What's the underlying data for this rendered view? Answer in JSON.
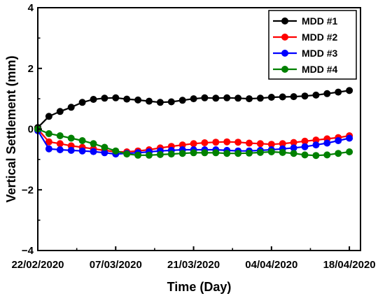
{
  "chart_data": {
    "type": "line",
    "title": "",
    "xlabel": "Time (Day)",
    "ylabel": "Vertical Settlement (mm)",
    "xlim": [
      "2020-02-22",
      "2020-04-20"
    ],
    "ylim": [
      -4,
      4
    ],
    "x_ticks": [
      "22/02/2020",
      "07/03/2020",
      "21/03/2020",
      "04/04/2020",
      "18/04/2020"
    ],
    "y_ticks": [
      "4",
      "2",
      "0",
      "−2",
      "−4"
    ],
    "y_tick_values": [
      4,
      2,
      0,
      -2,
      -4
    ],
    "legend_placement": "top-right",
    "grid": false,
    "x": [
      "2020-02-22",
      "2020-02-24",
      "2020-02-26",
      "2020-02-28",
      "2020-03-01",
      "2020-03-03",
      "2020-03-05",
      "2020-03-07",
      "2020-03-09",
      "2020-03-11",
      "2020-03-13",
      "2020-03-15",
      "2020-03-17",
      "2020-03-19",
      "2020-03-21",
      "2020-03-23",
      "2020-03-25",
      "2020-03-27",
      "2020-03-29",
      "2020-03-31",
      "2020-04-02",
      "2020-04-04",
      "2020-04-06",
      "2020-04-08",
      "2020-04-10",
      "2020-04-12",
      "2020-04-14",
      "2020-04-16",
      "2020-04-18"
    ],
    "series": [
      {
        "name": "MDD #1",
        "color": "#000000",
        "values": [
          0.05,
          0.42,
          0.58,
          0.72,
          0.88,
          0.98,
          1.02,
          1.03,
          0.99,
          0.96,
          0.92,
          0.88,
          0.9,
          0.95,
          1.0,
          1.03,
          1.02,
          1.03,
          1.02,
          1.0,
          1.02,
          1.05,
          1.06,
          1.07,
          1.09,
          1.12,
          1.17,
          1.22,
          1.27
        ]
      },
      {
        "name": "MDD #2",
        "color": "#ff0000",
        "values": [
          0.0,
          -0.42,
          -0.48,
          -0.55,
          -0.6,
          -0.65,
          -0.7,
          -0.75,
          -0.75,
          -0.72,
          -0.68,
          -0.62,
          -0.57,
          -0.52,
          -0.48,
          -0.45,
          -0.43,
          -0.42,
          -0.43,
          -0.46,
          -0.48,
          -0.5,
          -0.48,
          -0.44,
          -0.4,
          -0.36,
          -0.32,
          -0.28,
          -0.22
        ]
      },
      {
        "name": "MDD #3",
        "color": "#0000ff",
        "values": [
          -0.05,
          -0.65,
          -0.68,
          -0.7,
          -0.72,
          -0.74,
          -0.78,
          -0.82,
          -0.8,
          -0.78,
          -0.75,
          -0.72,
          -0.7,
          -0.68,
          -0.68,
          -0.68,
          -0.68,
          -0.7,
          -0.72,
          -0.72,
          -0.7,
          -0.68,
          -0.65,
          -0.62,
          -0.58,
          -0.52,
          -0.46,
          -0.38,
          -0.3
        ]
      },
      {
        "name": "MDD #4",
        "color": "#008000",
        "values": [
          0.0,
          -0.15,
          -0.22,
          -0.3,
          -0.38,
          -0.48,
          -0.6,
          -0.72,
          -0.82,
          -0.86,
          -0.86,
          -0.84,
          -0.82,
          -0.8,
          -0.78,
          -0.78,
          -0.78,
          -0.8,
          -0.8,
          -0.79,
          -0.77,
          -0.75,
          -0.77,
          -0.8,
          -0.85,
          -0.87,
          -0.85,
          -0.8,
          -0.75
        ]
      }
    ]
  }
}
